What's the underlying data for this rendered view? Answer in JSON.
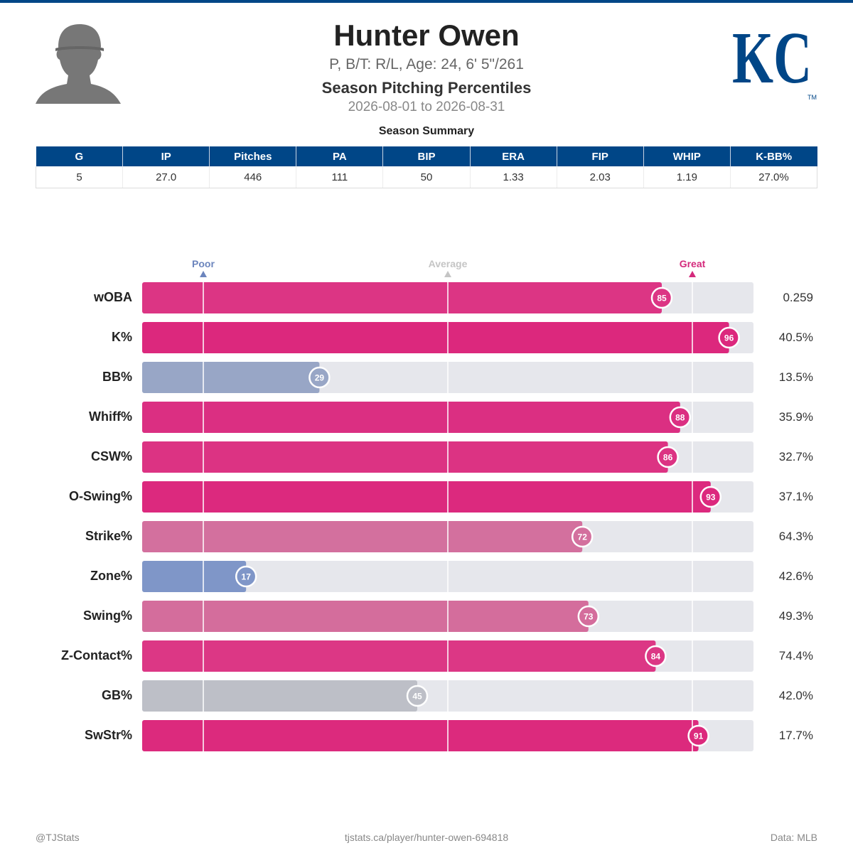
{
  "header": {
    "name": "Hunter Owen",
    "bio": "P, B/T: R/L, Age: 24, 6' 5\"/261",
    "subtitle": "Season Pitching Percentiles",
    "date_range": "2026-08-01 to 2026-08-31",
    "logo_text": "KC",
    "trademark": "TM"
  },
  "summary": {
    "title": "Season Summary",
    "columns": [
      "G",
      "IP",
      "Pitches",
      "PA",
      "BIP",
      "ERA",
      "FIP",
      "WHIP",
      "K-BB%"
    ],
    "values": [
      "5",
      "27.0",
      "446",
      "111",
      "50",
      "1.33",
      "2.03",
      "1.19",
      "27.0%"
    ]
  },
  "chart_data": {
    "type": "bar",
    "orientation": "horizontal",
    "xlim": [
      0,
      100
    ],
    "reference_markers": [
      {
        "label": "Poor",
        "value": 10,
        "color": "#6c85bd"
      },
      {
        "label": "Average",
        "value": 50,
        "color": "#c5c5c5"
      },
      {
        "label": "Great",
        "value": 90,
        "color": "#d42a7c"
      }
    ],
    "categories": [
      "wOBA",
      "K%",
      "BB%",
      "Whiff%",
      "CSW%",
      "O-Swing%",
      "Strike%",
      "Zone%",
      "Swing%",
      "Z-Contact%",
      "GB%",
      "SwStr%"
    ],
    "percentiles": [
      85,
      96,
      29,
      88,
      86,
      93,
      72,
      17,
      73,
      84,
      45,
      91
    ],
    "stat_values": [
      "0.259",
      "40.5%",
      "13.5%",
      "35.9%",
      "32.7%",
      "37.1%",
      "64.3%",
      "42.6%",
      "49.3%",
      "74.4%",
      "42.0%",
      "17.7%"
    ],
    "bar_colors": [
      "#dc3584",
      "#dc287d",
      "#98a6c6",
      "#db2f82",
      "#dc3383",
      "#dc297e",
      "#d3709e",
      "#7f96c8",
      "#d46d9c",
      "#dc3785",
      "#bdbfc7",
      "#dc2a7d"
    ]
  },
  "footer": {
    "left": "@TJStats",
    "center": "tjstats.ca/player/hunter-owen-694818",
    "right": "Data: MLB"
  }
}
